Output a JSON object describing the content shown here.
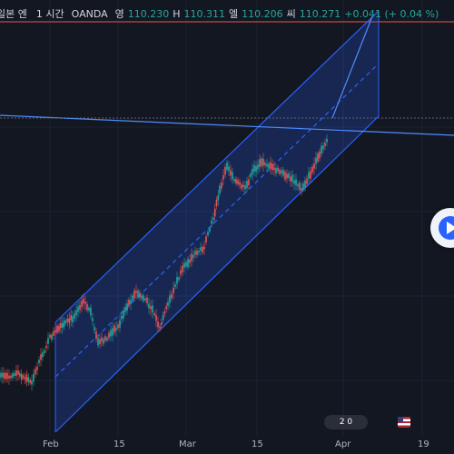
{
  "header": {
    "symbol": "일본 엔",
    "timeframe": "1 시간",
    "exchange": "OANDA",
    "open_label": "영",
    "open_value": "110.230",
    "high_label": "H",
    "high_value": "110.311",
    "low_label": "엘",
    "low_value": "110.206",
    "close_label": "씨",
    "close_value": "110.271",
    "change": "+0.041 (+ 0.04 %)"
  },
  "time_axis": [
    "Feb",
    "15",
    "Mar",
    "15",
    "Apr",
    "19"
  ],
  "events_badge": "2 0",
  "colors": {
    "background": "#131722",
    "channel": "#2962ff",
    "up": "#26a69a",
    "down": "#ef5350"
  },
  "icons": {
    "play": "play-icon",
    "flag": "us-flag-icon"
  }
}
